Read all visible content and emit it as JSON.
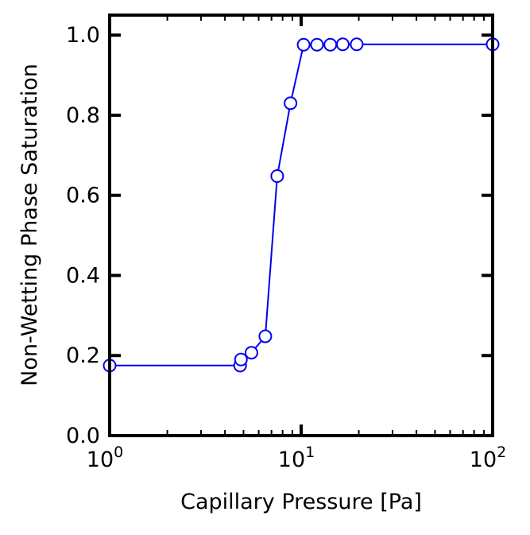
{
  "chart_data": {
    "type": "line",
    "xlabel": "Capillary Pressure [Pa]",
    "ylabel": "Non-Wetting Phase Saturation",
    "xscale": "log",
    "xlim": [
      1,
      100
    ],
    "ylim": [
      0,
      1.05
    ],
    "x_tick_labels": [
      {
        "base": "10",
        "exp": "0",
        "value": 1
      },
      {
        "base": "10",
        "exp": "1",
        "value": 10
      },
      {
        "base": "10",
        "exp": "2",
        "value": 100
      }
    ],
    "y_ticks": [
      0.0,
      0.2,
      0.4,
      0.6,
      0.8,
      1.0
    ],
    "y_tick_labels": [
      "0.0",
      "0.2",
      "0.4",
      "0.6",
      "0.8",
      "1.0"
    ],
    "series": [
      {
        "color": "#0000ee",
        "marker": "open-circle",
        "x": [
          1.0,
          4.8,
          4.85,
          5.5,
          6.5,
          7.5,
          8.8,
          10.3,
          12.1,
          14.2,
          16.5,
          19.5,
          100
        ],
        "y": [
          0.175,
          0.175,
          0.19,
          0.207,
          0.248,
          0.648,
          0.83,
          0.976,
          0.976,
          0.976,
          0.977,
          0.977,
          0.977
        ]
      }
    ],
    "grid": false
  }
}
